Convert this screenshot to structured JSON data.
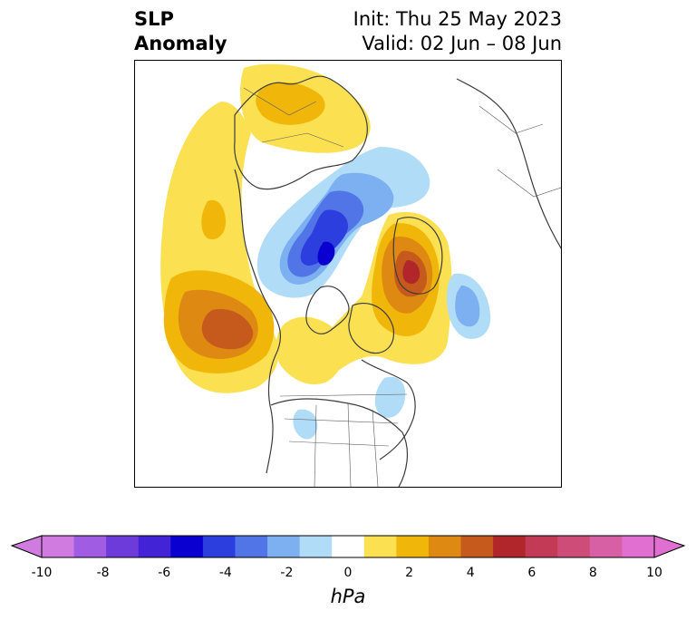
{
  "title": {
    "left_line1": "SLP",
    "left_line2": "Anomaly",
    "right_line1": "Init: Thu 25 May 2023",
    "right_line2": "Valid: 02 Jun – 08 Jun"
  },
  "colorbar": {
    "unit": "hPa",
    "min": -10,
    "max": 10,
    "ticks": [
      "-10",
      "-8",
      "-6",
      "-4",
      "-2",
      "0",
      "2",
      "4",
      "6",
      "8",
      "10"
    ],
    "colors": [
      "#d07be0",
      "#a05ce3",
      "#6e3bdb",
      "#4224d6",
      "#0a00cf",
      "#2c3ede",
      "#5175e6",
      "#7cb0f0",
      "#b0dcf8",
      "#ffffff",
      "#fbe052",
      "#f0b70a",
      "#de8a12",
      "#c55a1c",
      "#b0262a",
      "#c23a55",
      "#cd4d78",
      "#d75fa3",
      "#e16fd2"
    ],
    "under_color": "#d07be0",
    "over_color": "#e16fd2"
  },
  "map": {
    "projection": "north-polar-stereographic",
    "region": "Northern Hemisphere / North America"
  }
}
